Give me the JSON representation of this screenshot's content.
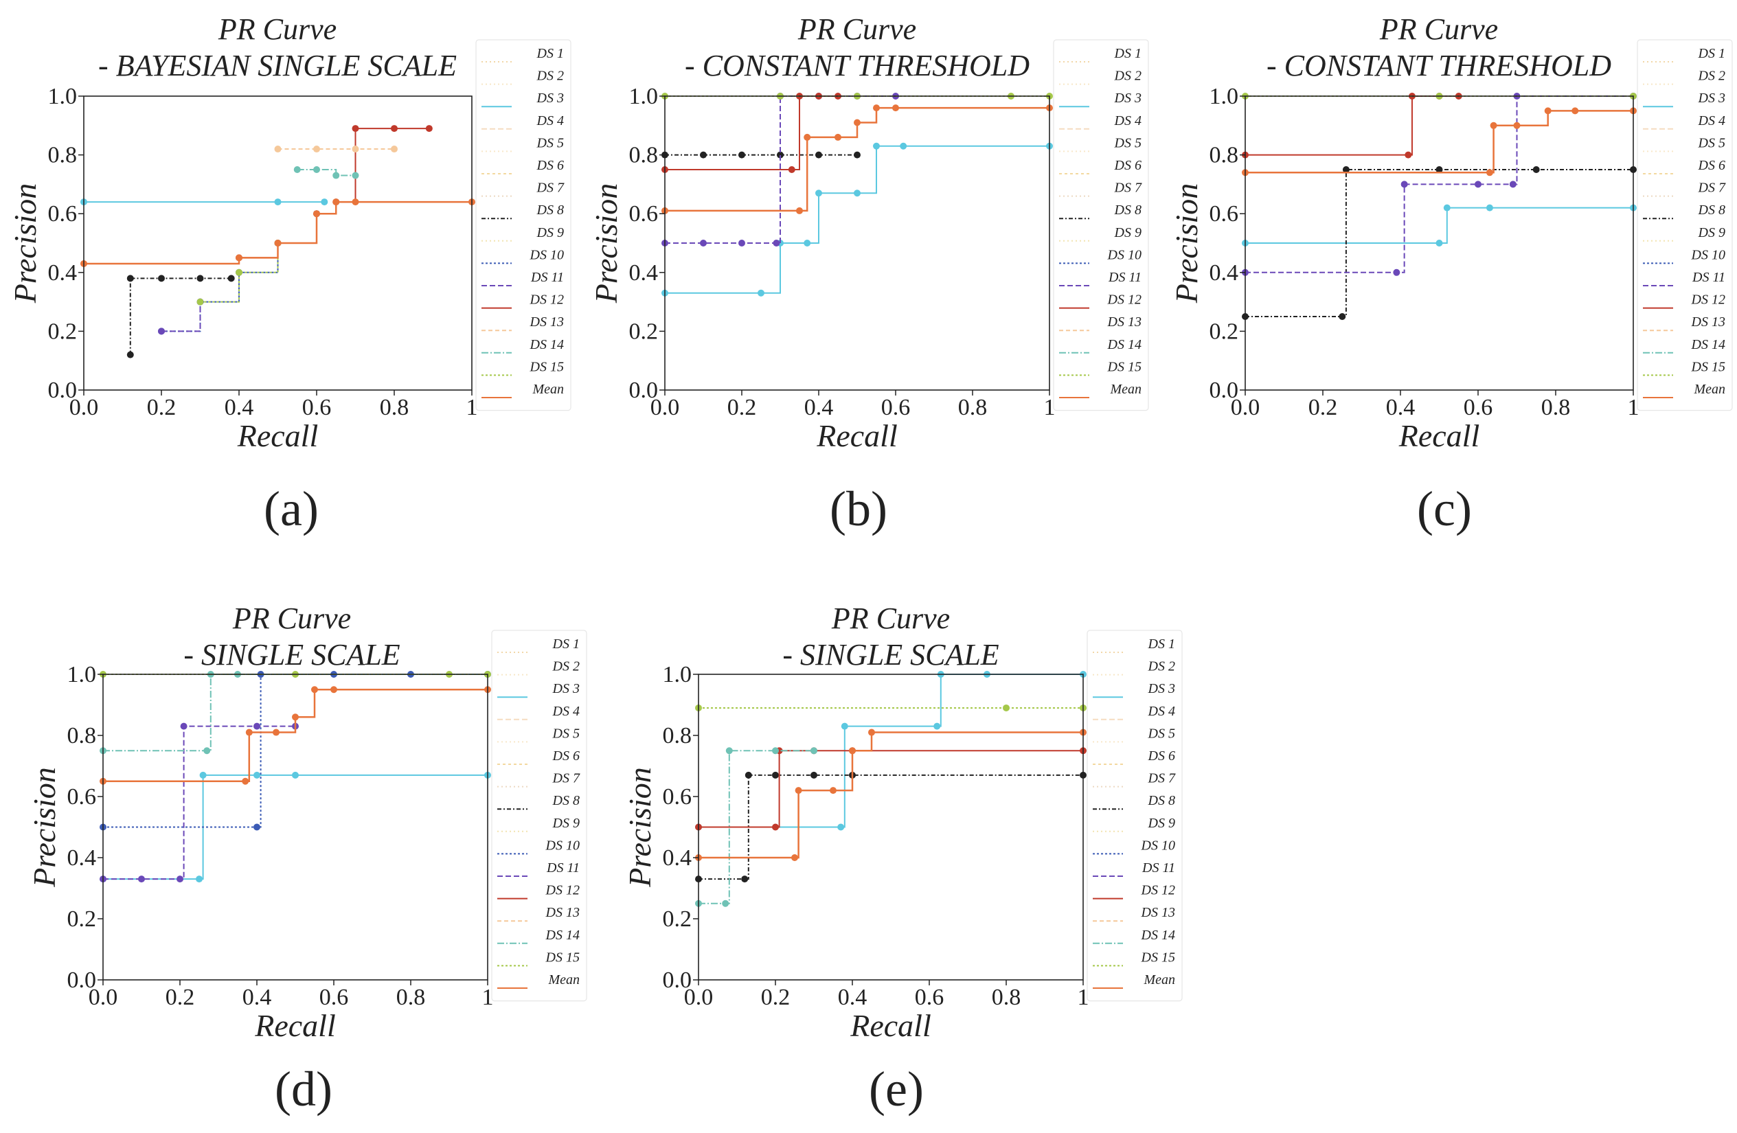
{
  "figure_caption": "Five precision-recall curve panels (a)-(e)",
  "series_colors": {
    "DS 1": "#f2d7a8",
    "DS 2": "#f6e7c7",
    "DS 3": "#5bc8e0",
    "DS 4": "#f5dcc0",
    "DS 5": "#f8e8c9",
    "DS 6": "#f3d9a0",
    "DS 7": "#ecd9c2",
    "DS 8": "#222222",
    "DS 9": "#f2e4b0",
    "DS 10": "#3b5bb5",
    "DS 11": "#6a48b8",
    "DS 12": "#c0392b",
    "DS 13": "#f5c89a",
    "DS 14": "#6fc2b5",
    "DS 15": "#a5c84a",
    "Mean": "#e8743b"
  },
  "chart_data": [
    {
      "panel_label": "(a)",
      "type": "line",
      "title_line1": "PR Curve",
      "title_line2": "- BAYESIAN SINGLE SCALE",
      "xlabel": "Recall",
      "ylabel": "Precision",
      "xlim": [
        0,
        1
      ],
      "ylim": [
        0,
        1
      ],
      "xticks": [
        "0.0",
        "0.2",
        "0.4",
        "0.6",
        "0.8",
        "1"
      ],
      "yticks": [
        "0.0",
        "0.2",
        "0.4",
        "0.6",
        "0.8",
        "1.0"
      ],
      "legend": [
        "DS 1",
        "DS 2",
        "DS 3",
        "DS 4",
        "DS 5",
        "DS 6",
        "DS 7",
        "DS 8",
        "DS 9",
        "DS 10",
        "DS 11",
        "DS 12",
        "DS 13",
        "DS 14",
        "DS 15",
        "Mean"
      ],
      "series": [
        {
          "name": "DS 3",
          "x": [
            0,
            0.5,
            0.62
          ],
          "y": [
            0.64,
            0.64,
            0.64
          ]
        },
        {
          "name": "DS 8",
          "x": [
            0.12,
            0.12,
            0.2,
            0.3,
            0.38
          ],
          "y": [
            0.12,
            0.38,
            0.38,
            0.38,
            0.38
          ]
        },
        {
          "name": "DS 10",
          "x": [
            0.2,
            0.3,
            0.4,
            0.5,
            0.6
          ],
          "y": [
            0.2,
            0.3,
            0.4,
            0.5,
            0.6
          ]
        },
        {
          "name": "DS 11",
          "x": [
            0.2,
            0.3
          ],
          "y": [
            0.2,
            0.3
          ]
        },
        {
          "name": "DS 12",
          "x": [
            0.4,
            0.5,
            0.6,
            0.65,
            0.7,
            0.8,
            0.89
          ],
          "y": [
            0.45,
            0.5,
            0.6,
            0.64,
            0.89,
            0.89,
            0.89
          ]
        },
        {
          "name": "DS 13",
          "x": [
            0.5,
            0.6,
            0.7,
            0.8
          ],
          "y": [
            0.82,
            0.82,
            0.82,
            0.82
          ]
        },
        {
          "name": "DS 14",
          "x": [
            0.55,
            0.6,
            0.65,
            0.7
          ],
          "y": [
            0.75,
            0.75,
            0.73,
            0.73
          ]
        },
        {
          "name": "DS 15",
          "x": [
            0.3,
            0.4,
            0.5
          ],
          "y": [
            0.3,
            0.4,
            0.5
          ]
        },
        {
          "name": "Mean",
          "x": [
            0,
            0.4,
            0.5,
            0.6,
            0.65,
            0.7,
            1
          ],
          "y": [
            0.43,
            0.45,
            0.5,
            0.6,
            0.64,
            0.64,
            0.64
          ]
        }
      ]
    },
    {
      "panel_label": "(b)",
      "type": "line",
      "title_line1": "PR Curve",
      "title_line2": "- CONSTANT THRESHOLD",
      "xlabel": "Recall",
      "ylabel": "Precision",
      "xlim": [
        0,
        1
      ],
      "ylim": [
        0,
        1
      ],
      "xticks": [
        "0.0",
        "0.2",
        "0.4",
        "0.6",
        "0.8",
        "1"
      ],
      "yticks": [
        "0.0",
        "0.2",
        "0.4",
        "0.6",
        "0.8",
        "1.0"
      ],
      "legend": [
        "DS 1",
        "DS 2",
        "DS 3",
        "DS 4",
        "DS 5",
        "DS 6",
        "DS 7",
        "DS 8",
        "DS 9",
        "DS 10",
        "DS 11",
        "DS 12",
        "DS 13",
        "DS 14",
        "DS 15",
        "Mean"
      ],
      "series": [
        {
          "name": "DS 3",
          "x": [
            0,
            0.25,
            0.3,
            0.37,
            0.4,
            0.5,
            0.55,
            0.62,
            1
          ],
          "y": [
            0.33,
            0.33,
            0.5,
            0.5,
            0.67,
            0.67,
            0.83,
            0.83,
            0.83
          ]
        },
        {
          "name": "DS 8",
          "x": [
            0,
            0.1,
            0.2,
            0.3,
            0.4,
            0.5
          ],
          "y": [
            0.8,
            0.8,
            0.8,
            0.8,
            0.8,
            0.8
          ]
        },
        {
          "name": "DS 11",
          "x": [
            0,
            0.1,
            0.2,
            0.29,
            0.3,
            0.4,
            0.5,
            0.6
          ],
          "y": [
            0.5,
            0.5,
            0.5,
            0.5,
            1,
            1,
            1,
            1
          ]
        },
        {
          "name": "DS 12",
          "x": [
            0,
            0.33,
            0.35,
            0.4,
            0.45
          ],
          "y": [
            0.75,
            0.75,
            1,
            1,
            1
          ]
        },
        {
          "name": "DS 15",
          "x": [
            0,
            0.3,
            0.5,
            0.9,
            1
          ],
          "y": [
            1,
            1,
            1,
            1,
            1
          ]
        },
        {
          "name": "Mean",
          "x": [
            0,
            0.35,
            0.37,
            0.45,
            0.5,
            0.55,
            0.6,
            1
          ],
          "y": [
            0.61,
            0.61,
            0.86,
            0.86,
            0.91,
            0.96,
            0.96,
            0.96
          ]
        }
      ]
    },
    {
      "panel_label": "(c)",
      "type": "line",
      "title_line1": "PR Curve",
      "title_line2": "- CONSTANT THRESHOLD",
      "xlabel": "Recall",
      "ylabel": "Precision",
      "xlim": [
        0,
        1
      ],
      "ylim": [
        0,
        1
      ],
      "xticks": [
        "0.0",
        "0.2",
        "0.4",
        "0.6",
        "0.8",
        "1"
      ],
      "yticks": [
        "0.0",
        "0.2",
        "0.4",
        "0.6",
        "0.8",
        "1.0"
      ],
      "legend": [
        "DS 1",
        "DS 2",
        "DS 3",
        "DS 4",
        "DS 5",
        "DS 6",
        "DS 7",
        "DS 8",
        "DS 9",
        "DS 10",
        "DS 11",
        "DS 12",
        "DS 13",
        "DS 14",
        "DS 15",
        "Mean"
      ],
      "series": [
        {
          "name": "DS 3",
          "x": [
            0,
            0.5,
            0.52,
            0.63,
            1
          ],
          "y": [
            0.5,
            0.5,
            0.62,
            0.62,
            0.62
          ]
        },
        {
          "name": "DS 8",
          "x": [
            0,
            0.25,
            0.26,
            0.5,
            0.75,
            1
          ],
          "y": [
            0.25,
            0.25,
            0.75,
            0.75,
            0.75,
            0.75
          ]
        },
        {
          "name": "DS 11",
          "x": [
            0,
            0.39,
            0.41,
            0.6,
            0.69,
            0.7,
            1
          ],
          "y": [
            0.4,
            0.4,
            0.7,
            0.7,
            0.7,
            1,
            1
          ]
        },
        {
          "name": "DS 12",
          "x": [
            0,
            0.42,
            0.43,
            0.5,
            0.55
          ],
          "y": [
            0.8,
            0.8,
            1,
            1,
            1
          ]
        },
        {
          "name": "DS 15",
          "x": [
            0,
            0.5,
            1
          ],
          "y": [
            1,
            1,
            1
          ]
        },
        {
          "name": "Mean",
          "x": [
            0,
            0.63,
            0.64,
            0.7,
            0.78,
            0.85,
            1
          ],
          "y": [
            0.74,
            0.74,
            0.9,
            0.9,
            0.95,
            0.95,
            0.95
          ]
        }
      ]
    },
    {
      "panel_label": "(d)",
      "type": "line",
      "title_line1": "PR Curve",
      "title_line2": "- SINGLE SCALE",
      "xlabel": "Recall",
      "ylabel": "Precision",
      "xlim": [
        0,
        1
      ],
      "ylim": [
        0,
        1
      ],
      "xticks": [
        "0.0",
        "0.2",
        "0.4",
        "0.6",
        "0.8",
        "1"
      ],
      "yticks": [
        "0.0",
        "0.2",
        "0.4",
        "0.6",
        "0.8",
        "1.0"
      ],
      "legend": [
        "DS 1",
        "DS 2",
        "DS 3",
        "DS 4",
        "DS 5",
        "DS 6",
        "DS 7",
        "DS 8",
        "DS 9",
        "DS 10",
        "DS 11",
        "DS 12",
        "DS 13",
        "DS 14",
        "DS 15",
        "Mean"
      ],
      "series": [
        {
          "name": "DS 3",
          "x": [
            0,
            0.25,
            0.26,
            0.4,
            0.5,
            1
          ],
          "y": [
            0.33,
            0.33,
            0.67,
            0.67,
            0.67,
            0.67
          ]
        },
        {
          "name": "DS 10",
          "x": [
            0,
            0.4,
            0.41,
            0.6,
            0.8,
            1
          ],
          "y": [
            0.5,
            0.5,
            1,
            1,
            1,
            1
          ]
        },
        {
          "name": "DS 11",
          "x": [
            0,
            0.1,
            0.2,
            0.21,
            0.4,
            0.5
          ],
          "y": [
            0.33,
            0.33,
            0.33,
            0.83,
            0.83,
            0.83
          ]
        },
        {
          "name": "DS 14",
          "x": [
            0,
            0.27,
            0.28,
            0.35,
            1
          ],
          "y": [
            0.75,
            0.75,
            1,
            1,
            1
          ]
        },
        {
          "name": "DS 15",
          "x": [
            0,
            0.5,
            0.9,
            1
          ],
          "y": [
            1,
            1,
            1,
            1
          ]
        },
        {
          "name": "Mean",
          "x": [
            0,
            0.37,
            0.38,
            0.45,
            0.5,
            0.55,
            0.6,
            1
          ],
          "y": [
            0.65,
            0.65,
            0.81,
            0.81,
            0.86,
            0.95,
            0.95,
            0.95
          ]
        }
      ]
    },
    {
      "panel_label": "(e)",
      "type": "line",
      "title_line1": "PR Curve",
      "title_line2": "- SINGLE SCALE",
      "xlabel": "Recall",
      "ylabel": "Precision",
      "xlim": [
        0,
        1
      ],
      "ylim": [
        0,
        1
      ],
      "xticks": [
        "0.0",
        "0.2",
        "0.4",
        "0.6",
        "0.8",
        "1"
      ],
      "yticks": [
        "0.0",
        "0.2",
        "0.4",
        "0.6",
        "0.8",
        "1.0"
      ],
      "legend": [
        "DS 1",
        "DS 2",
        "DS 3",
        "DS 4",
        "DS 5",
        "DS 6",
        "DS 7",
        "DS 8",
        "DS 9",
        "DS 10",
        "DS 11",
        "DS 12",
        "DS 13",
        "DS 14",
        "DS 15",
        "Mean"
      ],
      "series": [
        {
          "name": "DS 3",
          "x": [
            0,
            0.37,
            0.38,
            0.62,
            0.63,
            0.75,
            1
          ],
          "y": [
            0.5,
            0.5,
            0.83,
            0.83,
            1,
            1,
            1
          ]
        },
        {
          "name": "DS 8",
          "x": [
            0,
            0.12,
            0.13,
            0.2,
            0.3,
            0.4,
            1
          ],
          "y": [
            0.33,
            0.33,
            0.67,
            0.67,
            0.67,
            0.67,
            0.67
          ]
        },
        {
          "name": "DS 12",
          "x": [
            0,
            0.2,
            0.21,
            0.3,
            0.4,
            1
          ],
          "y": [
            0.5,
            0.5,
            0.75,
            0.75,
            0.75,
            0.75
          ]
        },
        {
          "name": "DS 14",
          "x": [
            0,
            0.07,
            0.08,
            0.2,
            0.3
          ],
          "y": [
            0.25,
            0.25,
            0.75,
            0.75,
            0.75
          ]
        },
        {
          "name": "DS 15",
          "x": [
            0,
            0.8,
            1
          ],
          "y": [
            0.89,
            0.89,
            0.89
          ]
        },
        {
          "name": "Mean",
          "x": [
            0,
            0.25,
            0.26,
            0.35,
            0.4,
            0.45,
            1
          ],
          "y": [
            0.4,
            0.4,
            0.62,
            0.62,
            0.75,
            0.81,
            0.81
          ]
        }
      ]
    }
  ]
}
